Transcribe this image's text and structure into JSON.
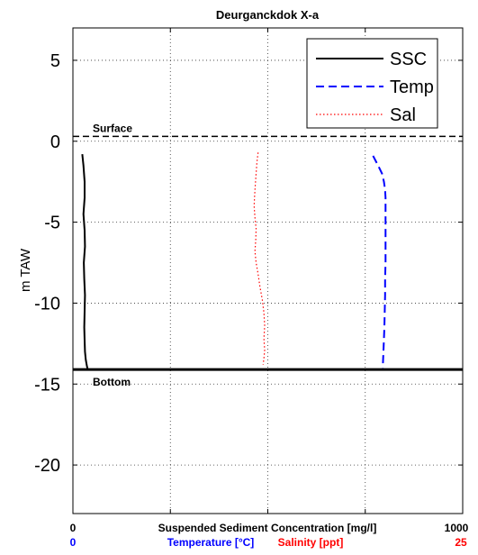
{
  "chart_data": {
    "type": "line",
    "title": "Deurganckdok X-a",
    "ylabel": "m TAW",
    "ylim": [
      -23,
      7
    ],
    "yticks": [
      5,
      0,
      -5,
      -10,
      -15,
      -20
    ],
    "xlim": [
      0,
      1000
    ],
    "grid": true,
    "legend_position": "top-right",
    "x_axes": [
      {
        "label": "Suspended Sediment Concentration [mg/l]",
        "min_label": "0",
        "max_label": "1000",
        "color": "#000000"
      },
      {
        "label": "Temperature [°C]",
        "min_label": "0",
        "max_label": "",
        "color": "#0000ff"
      },
      {
        "label": "Salinity [ppt]",
        "min_label": "",
        "max_label": "25",
        "color": "#ff0000"
      }
    ],
    "reference_lines": [
      {
        "label": "Surface",
        "y": 0.3,
        "style": "dashed",
        "color": "#000000"
      },
      {
        "label": "Bottom",
        "y": -14.1,
        "style": "solid",
        "color": "#000000"
      }
    ],
    "series": [
      {
        "name": "SSC",
        "color": "#000000",
        "style": "solid",
        "x": [
          24,
          27,
          30,
          30,
          27,
          30,
          31,
          28,
          29,
          31,
          30,
          29,
          30,
          31,
          33,
          36,
          38
        ],
        "y": [
          -0.8,
          -1.5,
          -2.5,
          -3.5,
          -4.5,
          -5.5,
          -6.5,
          -7.5,
          -8.5,
          -9.5,
          -10.5,
          -11.5,
          -12.3,
          -13.0,
          -13.5,
          -13.9,
          -14.1
        ]
      },
      {
        "name": "Temp",
        "color": "#0000ff",
        "style": "dashed",
        "x": [
          770,
          783,
          793,
          798,
          801,
          802,
          802,
          802,
          802,
          802,
          801,
          801,
          800,
          799,
          797,
          795
        ],
        "y": [
          -0.9,
          -1.5,
          -2.0,
          -2.5,
          -3.0,
          -3.5,
          -4.5,
          -5.5,
          -6.5,
          -7.5,
          -8.5,
          -9.5,
          -10.5,
          -11.5,
          -12.8,
          -14.0
        ]
      },
      {
        "name": "Sal",
        "color": "#ff0000",
        "style": "dotted",
        "x": [
          475,
          472,
          470,
          468,
          466,
          465,
          467,
          470,
          469,
          467,
          470,
          475,
          480,
          486,
          490,
          492,
          490,
          492,
          490,
          488
        ],
        "y": [
          -0.7,
          -1.3,
          -2.0,
          -2.7,
          -3.4,
          -4.0,
          -4.7,
          -5.4,
          -6.1,
          -6.8,
          -7.5,
          -8.2,
          -9.0,
          -9.8,
          -10.6,
          -11.4,
          -12.2,
          -12.9,
          -13.4,
          -13.8
        ]
      }
    ]
  }
}
